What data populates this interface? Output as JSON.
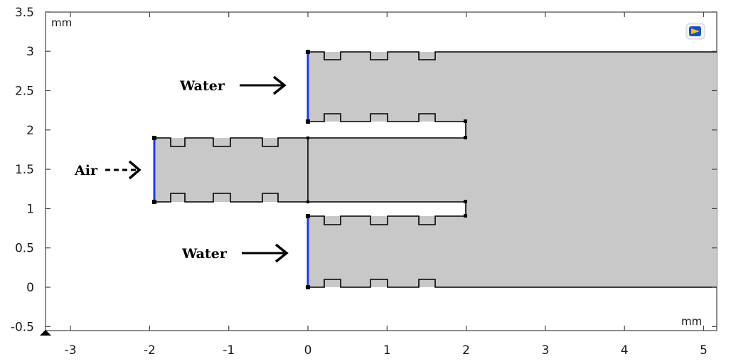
{
  "figure": {
    "x_unit": "mm",
    "y_unit": "mm",
    "x_ticks": [
      "-3",
      "-2",
      "-1",
      "0",
      "1",
      "2",
      "3",
      "4",
      "5"
    ],
    "y_ticks": [
      "-0.5",
      "0",
      "0.5",
      "1",
      "1.5",
      "2",
      "2.5",
      "3",
      "3.5"
    ],
    "x_range": [
      -3.5,
      5.1
    ],
    "y_range": [
      -0.5,
      3.5
    ]
  },
  "labels": {
    "water_top": "Water",
    "air": "Air",
    "water_bottom": "Water"
  },
  "colors": {
    "domain_fill": "#c8c8c8",
    "inlet": "#1f3be0",
    "edge": "#000000"
  },
  "icons": {
    "corner": "comsol-logo-icon"
  }
}
